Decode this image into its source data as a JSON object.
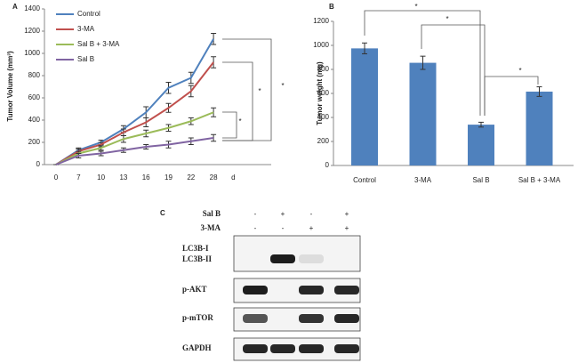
{
  "chart_data": [
    {
      "label": "A",
      "type": "line",
      "ylabel": "Tumor Volume (mm³)",
      "xlabel": "d",
      "categories": [
        "0",
        "7",
        "10",
        "13",
        "16",
        "19",
        "22",
        "28"
      ],
      "ylim": [
        0,
        1400
      ],
      "yticks": [
        0,
        200,
        400,
        600,
        800,
        1000,
        1200,
        1400
      ],
      "legend": "upper left",
      "series": [
        {
          "name": "Control",
          "color": "#4F81BD",
          "values": [
            0,
            130,
            200,
            320,
            470,
            690,
            780,
            1130
          ],
          "errors": [
            0,
            20,
            20,
            30,
            50,
            50,
            50,
            50
          ]
        },
        {
          "name": "3-MA",
          "color": "#C0504D",
          "values": [
            0,
            120,
            180,
            290,
            380,
            510,
            660,
            920
          ],
          "errors": [
            0,
            20,
            20,
            30,
            40,
            40,
            50,
            50
          ]
        },
        {
          "name": "Sal B + 3-MA",
          "color": "#9BBB59",
          "values": [
            0,
            100,
            150,
            230,
            280,
            330,
            390,
            470
          ],
          "errors": [
            0,
            20,
            20,
            30,
            30,
            30,
            30,
            40
          ]
        },
        {
          "name": "Sal B",
          "color": "#8064A2",
          "values": [
            0,
            80,
            100,
            130,
            160,
            180,
            210,
            240
          ],
          "errors": [
            0,
            20,
            20,
            20,
            20,
            30,
            30,
            30
          ]
        }
      ],
      "annotations": [
        "*",
        "*",
        "*"
      ]
    },
    {
      "label": "B",
      "type": "bar",
      "ylabel": "Tumor weight (mg)",
      "categories": [
        "Control",
        "3-MA",
        "Sal B",
        "Sal B + 3-MA"
      ],
      "values": [
        975,
        855,
        340,
        615
      ],
      "errors": [
        45,
        55,
        20,
        40
      ],
      "color": "#4F81BD",
      "ylim": [
        0,
        1200
      ],
      "yticks": [
        0,
        200,
        400,
        600,
        800,
        1000,
        1200
      ],
      "annotations": [
        "*",
        "*",
        "*"
      ]
    }
  ],
  "blot": {
    "label": "C",
    "treatments": [
      {
        "name": "Sal B",
        "marks": [
          "-",
          "+",
          "-",
          "+"
        ]
      },
      {
        "name": "3-MA",
        "marks": [
          "-",
          "-",
          "+",
          "+"
        ]
      }
    ],
    "bands": [
      "LC3B-I",
      "LC3B-II",
      "p-AKT",
      "p-mTOR",
      "GAPDH"
    ]
  }
}
